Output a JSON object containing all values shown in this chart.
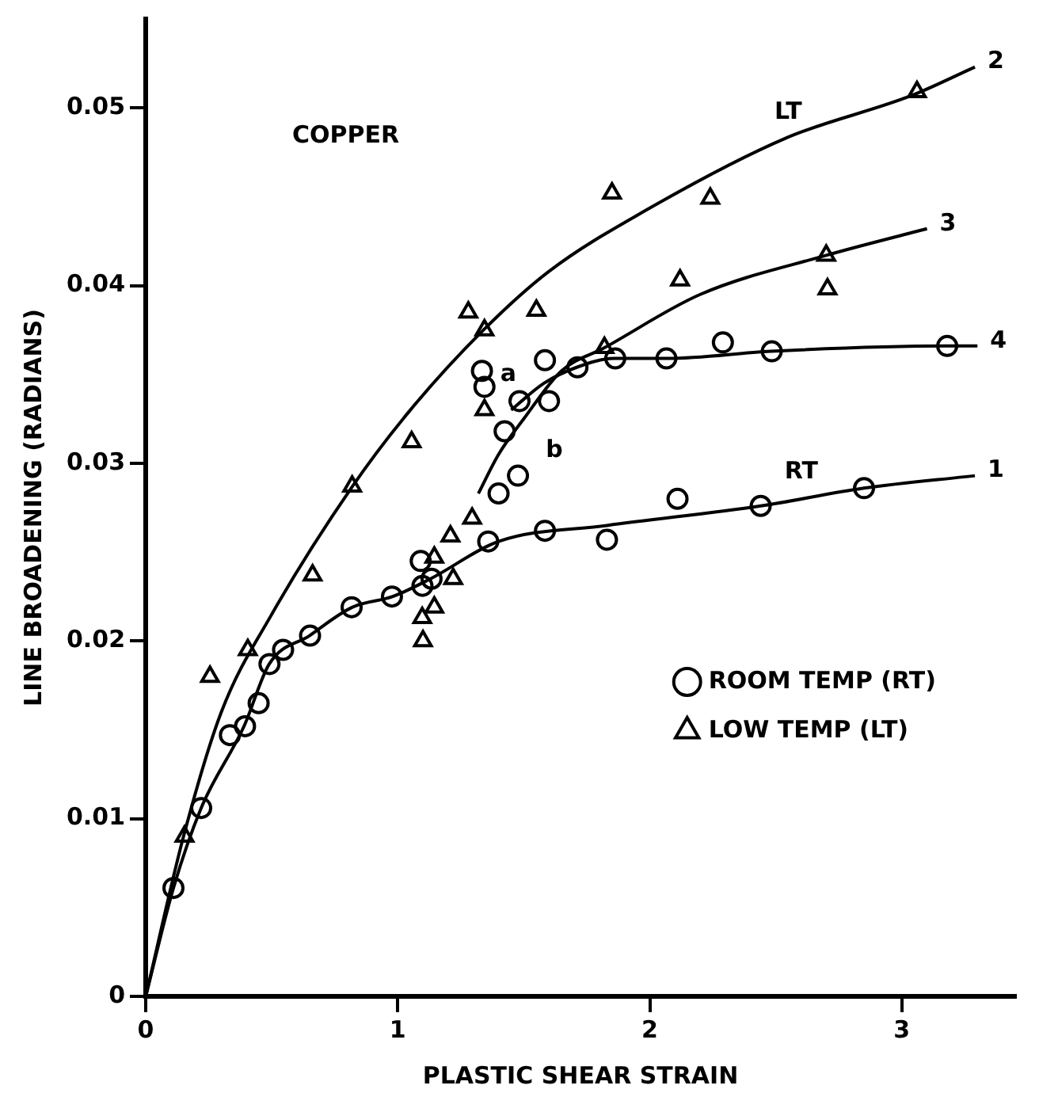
{
  "chart_data": {
    "type": "scatter",
    "xlabel": "PLASTIC SHEAR STRAIN",
    "ylabel": "LINE BROADENING (RADIANS)",
    "xlim": [
      0,
      3.45
    ],
    "xticks": [
      0,
      1,
      2,
      3
    ],
    "ylim": [
      0,
      0.055
    ],
    "yticks": [
      0,
      0.01,
      0.02,
      0.03,
      0.04,
      0.05
    ],
    "grid": false,
    "legend": "bottom right",
    "annotations": [
      "COPPER",
      "LT",
      "RT",
      "a",
      "b"
    ],
    "series": [
      {
        "name": "ROOM TEMP (RT)",
        "marker": "circle",
        "color": "#000000",
        "x": [
          0.11,
          0.22,
          0.334,
          0.394,
          0.448,
          0.491,
          0.545,
          0.652,
          0.817,
          0.977,
          1.098,
          1.091,
          1.134,
          1.359,
          1.584,
          1.83,
          2.11,
          2.44,
          2.85,
          1.334,
          1.344,
          1.584,
          1.713,
          1.483,
          1.6,
          1.424,
          1.477,
          1.4,
          1.863,
          2.066,
          2.29,
          2.484,
          3.18
        ],
        "values": [
          0.0061,
          0.0106,
          0.0147,
          0.0152,
          0.0165,
          0.0187,
          0.0195,
          0.0203,
          0.0219,
          0.0225,
          0.0231,
          0.0245,
          0.0235,
          0.0256,
          0.0262,
          0.0257,
          0.028,
          0.0276,
          0.0286,
          0.0352,
          0.0343,
          0.0358,
          0.0354,
          0.0335,
          0.0335,
          0.0318,
          0.0293,
          0.0283,
          0.0359,
          0.0359,
          0.0368,
          0.0363,
          0.0366
        ]
      },
      {
        "name": "LOW TEMP (LT)",
        "marker": "triangle",
        "color": "#000000",
        "x": [
          0.154,
          0.255,
          0.405,
          0.662,
          1.1,
          1.097,
          1.145,
          1.22,
          1.145,
          1.209,
          1.295,
          1.344,
          1.344,
          1.28,
          1.55,
          1.055,
          0.819,
          1.82,
          2.12,
          2.24,
          1.85,
          2.7,
          2.705,
          3.06
        ],
        "values": [
          0.009,
          0.018,
          0.0195,
          0.0237,
          0.02,
          0.0213,
          0.0219,
          0.0235,
          0.0247,
          0.0259,
          0.0269,
          0.033,
          0.0375,
          0.0385,
          0.0386,
          0.0312,
          0.0287,
          0.0365,
          0.0403,
          0.0449,
          0.0452,
          0.0417,
          0.0398,
          0.0509
        ]
      },
      {
        "name": "1",
        "type": "line",
        "marker": "none",
        "line_style": "solid",
        "color": "#000000",
        "x": [
          0,
          0.11,
          0.22,
          0.39,
          0.49,
          0.65,
          0.82,
          0.98,
          1.13,
          1.4,
          1.83,
          2.44,
          2.85,
          3.29
        ],
        "values": [
          0,
          0.0061,
          0.0106,
          0.0152,
          0.0187,
          0.0203,
          0.0219,
          0.0225,
          0.0235,
          0.0256,
          0.0265,
          0.0276,
          0.0286,
          0.0293
        ]
      },
      {
        "name": "2",
        "type": "line",
        "marker": "none",
        "line_style": "solid",
        "color": "#000000",
        "x": [
          0,
          0.15,
          0.3,
          0.5,
          0.82,
          1.05,
          1.34,
          1.6,
          1.98,
          2.54,
          3.04,
          3.29
        ],
        "values": [
          0,
          0.009,
          0.016,
          0.0215,
          0.0287,
          0.033,
          0.0375,
          0.0408,
          0.0442,
          0.0483,
          0.0507,
          0.0523
        ]
      },
      {
        "name": "3",
        "type": "line",
        "marker": "none",
        "line_style": "solid",
        "color": "#000000",
        "x": [
          1.32,
          1.4,
          1.5,
          1.65,
          1.82,
          2.2,
          2.7,
          3.1
        ],
        "values": [
          0.0283,
          0.0305,
          0.0325,
          0.0352,
          0.0365,
          0.0395,
          0.0417,
          0.0432
        ]
      },
      {
        "name": "4",
        "type": "line",
        "marker": "none",
        "line_style": "solid",
        "color": "#000000",
        "x": [
          1.45,
          1.58,
          1.71,
          1.86,
          2.07,
          2.48,
          3.18,
          3.3
        ],
        "values": [
          0.033,
          0.0345,
          0.0354,
          0.0359,
          0.0359,
          0.0363,
          0.0366,
          0.0366
        ]
      }
    ]
  }
}
